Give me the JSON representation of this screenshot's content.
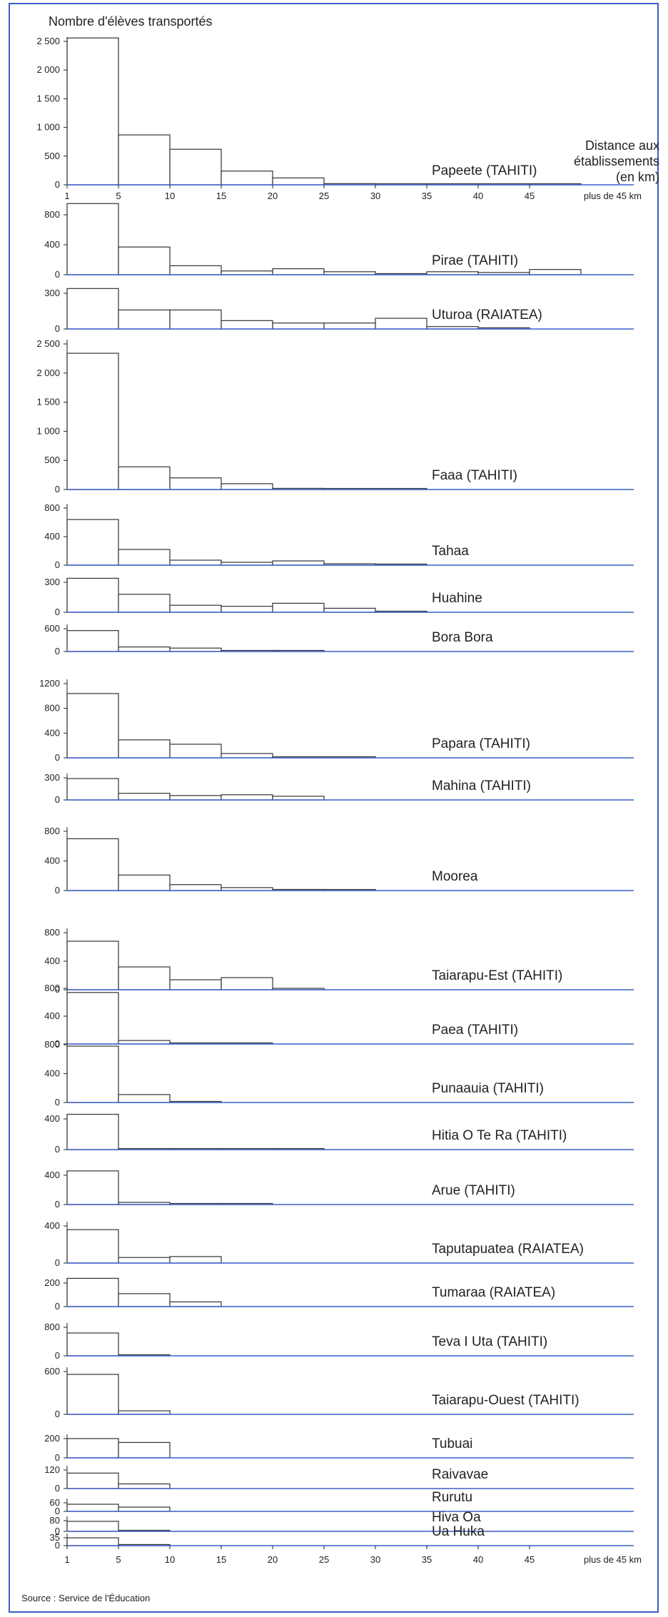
{
  "chart_data": {
    "type": "bar",
    "title": "Nombre d'élèves transportés",
    "xlabel_lines": [
      "Distance aux",
      "établissements",
      "(en km)"
    ],
    "source": "Source : Service de l'Éducation",
    "x_tick_labels": [
      "1",
      "5",
      "10",
      "15",
      "20",
      "25",
      "30",
      "35",
      "40",
      "45",
      "plus de 45 km"
    ],
    "bins": [
      "1-5",
      "5-10",
      "10-15",
      "15-20",
      "20-25",
      "25-30",
      "30-35",
      "35-40",
      "40-45",
      "plus de 45 km"
    ],
    "panels": [
      {
        "name": "Papeete (TAHITI)",
        "values": [
          2560,
          870,
          620,
          240,
          120,
          20,
          10,
          5,
          5,
          5
        ],
        "yticks": [
          "2 500",
          "2 000",
          "1 500",
          "1 000",
          "500",
          "0"
        ]
      },
      {
        "name": "Pirae (TAHITI)",
        "values": [
          950,
          370,
          120,
          50,
          80,
          40,
          15,
          40,
          30,
          70
        ],
        "yticks": [
          "800",
          "400",
          "0"
        ]
      },
      {
        "name": "Uturoa (RAIATEA)",
        "values": [
          340,
          160,
          160,
          70,
          50,
          50,
          90,
          20,
          10,
          0
        ],
        "yticks": [
          "300",
          "0"
        ]
      },
      {
        "name": "Faaa (TAHITI)",
        "values": [
          2340,
          390,
          200,
          100,
          20,
          10,
          5,
          0,
          0,
          0
        ],
        "yticks": [
          "2 500",
          "2 000",
          "1 500",
          "1 000",
          "500",
          "0"
        ]
      },
      {
        "name": "Tahaa",
        "values": [
          640,
          220,
          70,
          40,
          60,
          20,
          5,
          0,
          0,
          0
        ],
        "yticks": [
          "800",
          "400",
          "0"
        ]
      },
      {
        "name": "Huahine",
        "values": [
          340,
          180,
          70,
          60,
          90,
          40,
          10,
          0,
          0,
          0
        ],
        "yticks": [
          "300",
          "0"
        ]
      },
      {
        "name": "Bora Bora",
        "values": [
          550,
          120,
          90,
          20,
          5,
          0,
          0,
          0,
          0,
          0
        ],
        "yticks": [
          "600",
          "0"
        ]
      },
      {
        "name": "Papara (TAHITI)",
        "values": [
          1040,
          290,
          220,
          70,
          10,
          5,
          0,
          0,
          0,
          0
        ],
        "yticks": [
          "1200",
          "800",
          "400",
          "0"
        ]
      },
      {
        "name": "Mahina (TAHITI)",
        "values": [
          290,
          90,
          60,
          70,
          50,
          0,
          0,
          0,
          0,
          0
        ],
        "yticks": [
          "300",
          "0"
        ]
      },
      {
        "name": "Moorea",
        "values": [
          700,
          210,
          80,
          40,
          15,
          5,
          0,
          0,
          0,
          0
        ],
        "yticks": [
          "800",
          "400",
          "0"
        ]
      },
      {
        "name": "Taiarapu-Est (TAHITI)",
        "values": [
          680,
          320,
          140,
          170,
          20,
          0,
          0,
          0,
          0,
          0
        ],
        "yticks": [
          "800",
          "400",
          "0"
        ]
      },
      {
        "name": "Paea (TAHITI)",
        "values": [
          740,
          50,
          10,
          5,
          0,
          0,
          0,
          0,
          0,
          0
        ],
        "yticks": [
          "800",
          "400",
          "0"
        ]
      },
      {
        "name": "Punaauia (TAHITI)",
        "values": [
          780,
          110,
          10,
          0,
          0,
          0,
          0,
          0,
          0,
          0
        ],
        "yticks": [
          "800",
          "400",
          "0"
        ]
      },
      {
        "name": "Hitia O Te Ra  (TAHITI)",
        "values": [
          460,
          10,
          5,
          5,
          5,
          0,
          0,
          0,
          0,
          0
        ],
        "yticks": [
          "400",
          "0"
        ]
      },
      {
        "name": "Arue (TAHITI)",
        "values": [
          460,
          30,
          5,
          5,
          0,
          0,
          0,
          0,
          0,
          0
        ],
        "yticks": [
          "400",
          "0"
        ]
      },
      {
        "name": "Taputapuatea (RAIATEA)",
        "values": [
          360,
          60,
          70,
          0,
          0,
          0,
          0,
          0,
          0,
          0
        ],
        "yticks": [
          "400",
          "0"
        ]
      },
      {
        "name": "Tumaraa (RAIATEA)",
        "values": [
          240,
          110,
          40,
          0,
          0,
          0,
          0,
          0,
          0,
          0
        ],
        "yticks": [
          "200",
          "0"
        ]
      },
      {
        "name": "Teva I Uta (TAHITI)",
        "values": [
          640,
          10,
          0,
          0,
          0,
          0,
          0,
          0,
          0,
          0
        ],
        "yticks": [
          "800",
          "0"
        ]
      },
      {
        "name": "Taiarapu-Ouest (TAHITI)",
        "values": [
          560,
          50,
          0,
          0,
          0,
          0,
          0,
          0,
          0,
          0
        ],
        "yticks": [
          "600",
          "0"
        ]
      },
      {
        "name": "Tubuai",
        "values": [
          200,
          160,
          0,
          0,
          0,
          0,
          0,
          0,
          0,
          0
        ],
        "yticks": [
          "200",
          "0"
        ]
      },
      {
        "name": "Raivavae",
        "values": [
          100,
          30,
          0,
          0,
          0,
          0,
          0,
          0,
          0,
          0
        ],
        "yticks": [
          "120",
          "0"
        ]
      },
      {
        "name": "Rurutu",
        "values": [
          50,
          30,
          0,
          0,
          0,
          0,
          0,
          0,
          0,
          0
        ],
        "yticks": [
          "60",
          "0"
        ]
      },
      {
        "name": "Hiva Oa",
        "values": [
          75,
          5,
          0,
          0,
          0,
          0,
          0,
          0,
          0,
          0
        ],
        "yticks": [
          "80",
          "0"
        ]
      },
      {
        "name": "Ua Huka",
        "values": [
          35,
          5,
          0,
          0,
          0,
          0,
          0,
          0,
          0,
          0
        ],
        "yticks": [
          "35",
          "0"
        ]
      }
    ]
  }
}
